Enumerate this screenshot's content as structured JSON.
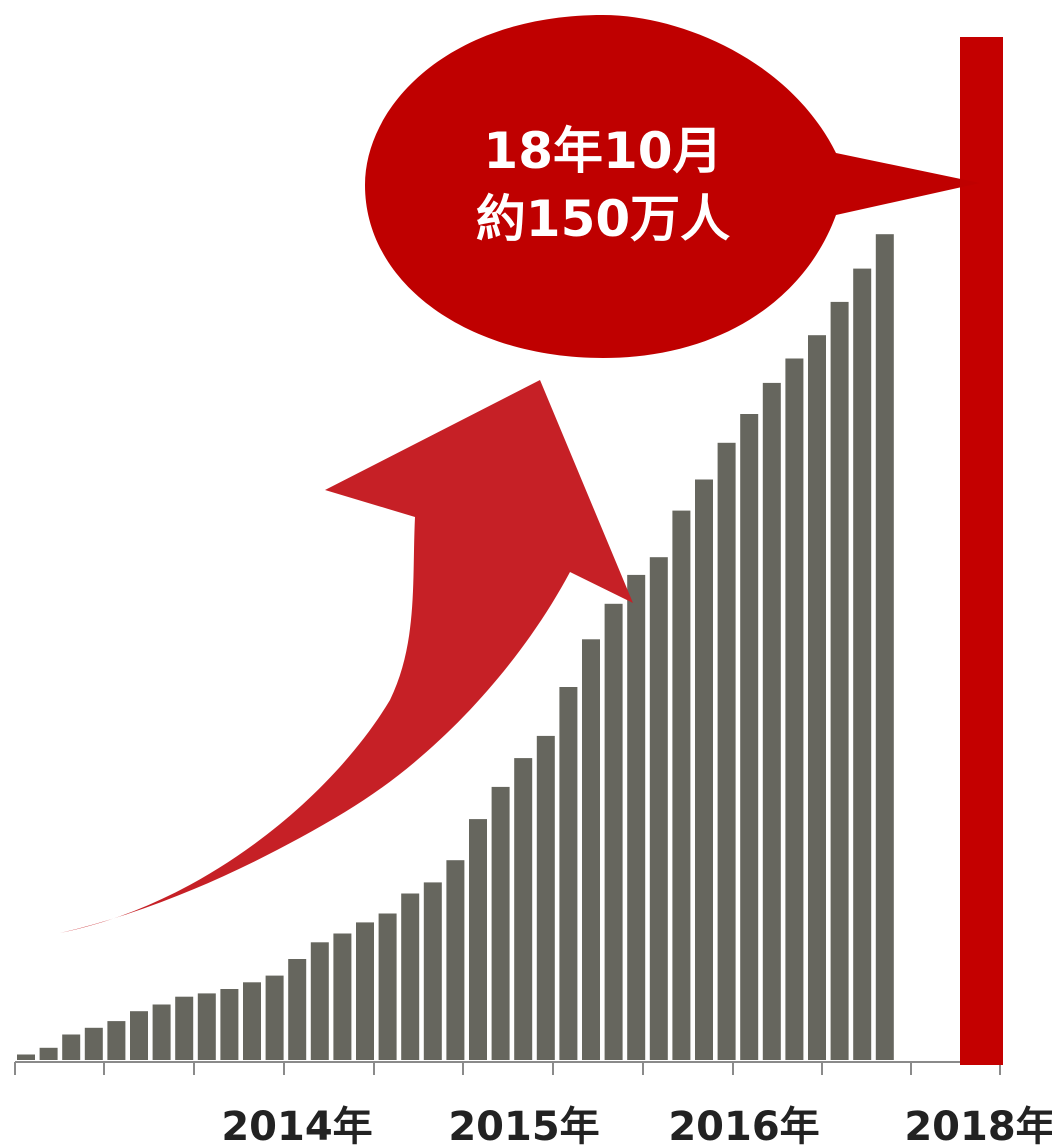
{
  "chart_data": {
    "type": "bar",
    "title": "",
    "xlabel": "",
    "ylabel": "",
    "grid": false,
    "colors": {
      "bar": "#66665e",
      "highlight": "#c40000",
      "callout": "#bf0000",
      "arrow": "#c62026"
    },
    "x_tick_labels": [
      "2014年",
      "2015年",
      "2016年",
      "2018年"
    ],
    "series_values": [
      0.5,
      1.1,
      2.3,
      2.9,
      3.5,
      4.4,
      5.0,
      5.7,
      6.0,
      6.4,
      7.0,
      7.6,
      9.1,
      10.6,
      11.4,
      12.4,
      13.2,
      15.0,
      16.0,
      18.0,
      21.7,
      24.6,
      27.2,
      29.2,
      33.6,
      37.9,
      41.1,
      43.7,
      45.3,
      49.5,
      52.3,
      55.6,
      58.2,
      61.0,
      63.2,
      65.3,
      68.3,
      71.3,
      74.4
    ],
    "highlight": {
      "label_line1": "18年10月",
      "label_line2": "約150万人",
      "value": 150
    },
    "annotations": [
      "growth-arrow"
    ]
  }
}
